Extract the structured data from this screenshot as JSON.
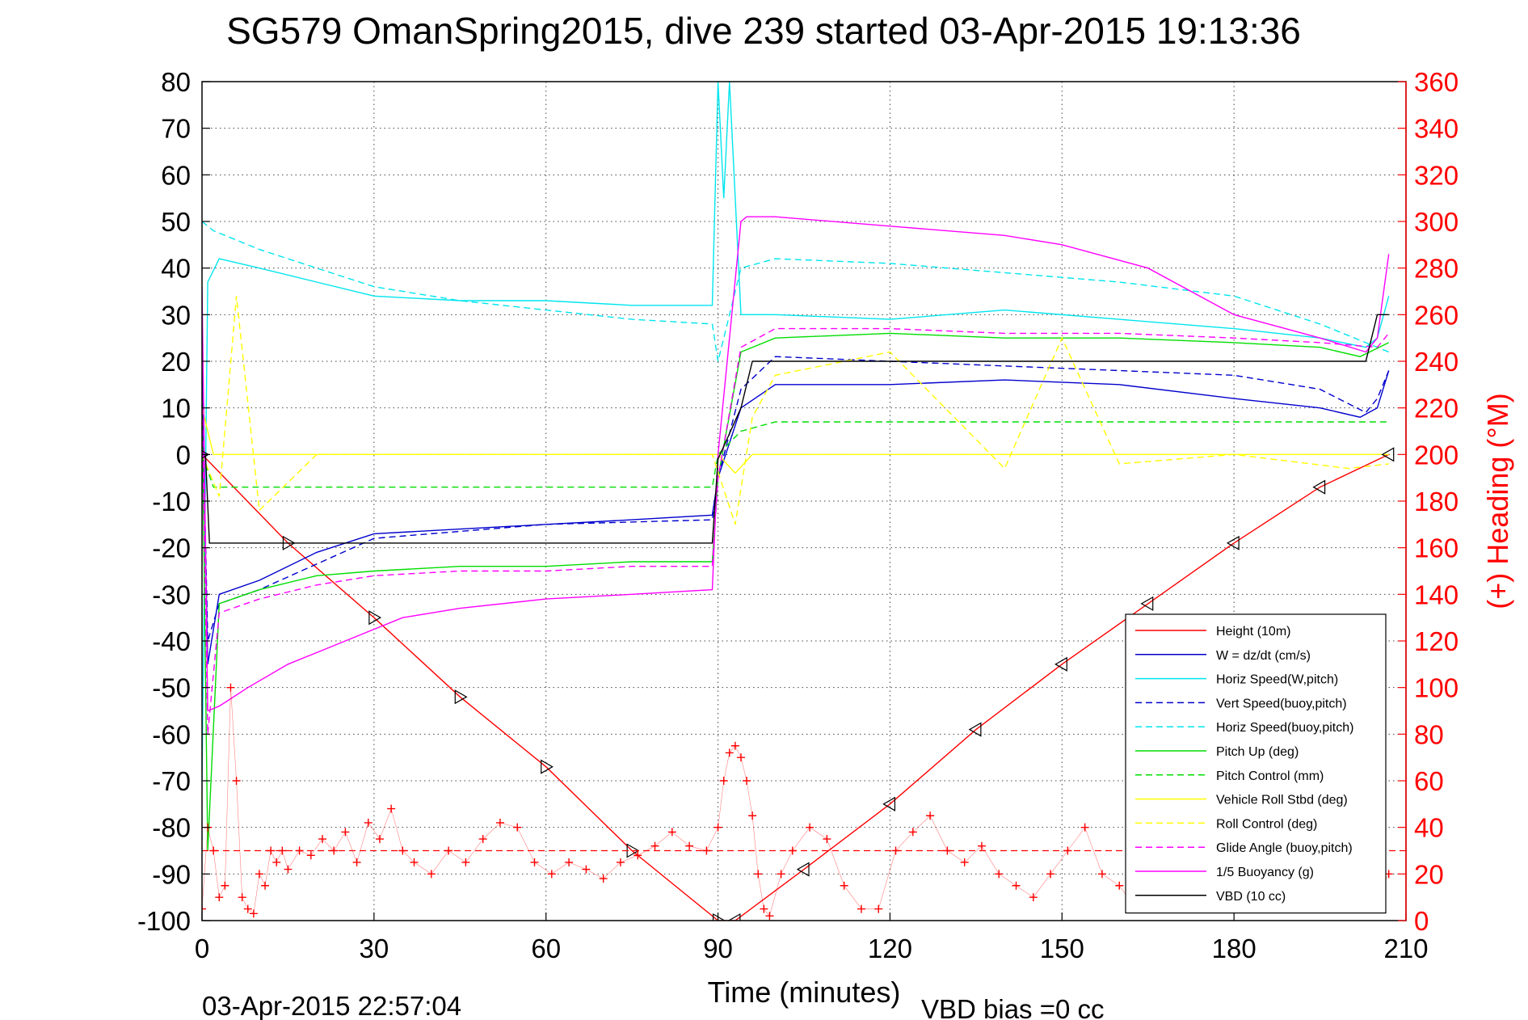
{
  "chart_data": {
    "type": "line",
    "title": "SG579 OmanSpring2015, dive 239 started 03-Apr-2015 19:13:36",
    "xlabel": "Time (minutes)",
    "ylabel": "",
    "y2label": "(+) Heading (°M)",
    "xlim": [
      0,
      210
    ],
    "ylim": [
      -100,
      80
    ],
    "y2lim": [
      0,
      360
    ],
    "xticks": [
      0,
      30,
      60,
      90,
      120,
      150,
      180,
      210
    ],
    "yticks": [
      -100,
      -90,
      -80,
      -70,
      -60,
      -50,
      -40,
      -30,
      -20,
      -10,
      0,
      10,
      20,
      30,
      40,
      50,
      60,
      70,
      80
    ],
    "y2ticks": [
      0,
      20,
      40,
      60,
      80,
      100,
      120,
      140,
      160,
      180,
      200,
      220,
      240,
      260,
      280,
      300,
      320,
      340,
      360
    ],
    "grid": true,
    "legend_position": "lower-right",
    "footer_left": "03-Apr-2015 22:57:04",
    "footer_right": "VBD bias =0 cc",
    "series": [
      {
        "name": "Height (10m)",
        "color": "#ff0000",
        "style": "solid",
        "x": [
          0,
          15,
          30,
          45,
          60,
          75,
          90,
          93,
          105,
          120,
          135,
          150,
          165,
          180,
          195,
          207
        ],
        "y": [
          0,
          -19,
          -35,
          -52,
          -67,
          -85,
          -100,
          -100,
          -89,
          -75,
          -59,
          -45,
          -32,
          -19,
          -7,
          0
        ]
      },
      {
        "name": "W = dz/dt (cm/s)",
        "color": "#0000cd",
        "style": "solid",
        "x": [
          0,
          1,
          3,
          10,
          20,
          30,
          45,
          60,
          75,
          89,
          90,
          94,
          100,
          120,
          140,
          160,
          180,
          195,
          202,
          205,
          207
        ],
        "y": [
          18,
          -45,
          -30,
          -27,
          -21,
          -17,
          -16,
          -15,
          -14,
          -13,
          -5,
          10,
          15,
          15,
          16,
          15,
          12,
          10,
          8,
          10,
          18
        ]
      },
      {
        "name": "Horiz Speed(W,pitch)",
        "color": "#00e5ee",
        "style": "solid",
        "x": [
          0,
          1,
          3,
          10,
          20,
          30,
          45,
          60,
          75,
          89,
          90,
          91,
          92,
          94,
          100,
          120,
          140,
          160,
          180,
          195,
          203,
          205,
          207
        ],
        "y": [
          -70,
          37,
          42,
          40,
          37,
          34,
          33,
          33,
          32,
          32,
          80,
          55,
          80,
          30,
          30,
          29,
          31,
          29,
          27,
          25,
          23,
          25,
          34
        ]
      },
      {
        "name": "Vert Speed(buoy,pitch)",
        "color": "#0000cd",
        "style": "dashed",
        "x": [
          0,
          1,
          3,
          10,
          30,
          60,
          89,
          90,
          94,
          100,
          120,
          140,
          160,
          180,
          195,
          203,
          205,
          207
        ],
        "y": [
          16,
          -40,
          -32,
          -29,
          -18,
          -15,
          -14,
          -5,
          14,
          21,
          20,
          19,
          18,
          17,
          14,
          9,
          12,
          18
        ]
      },
      {
        "name": "Horiz Speed(buoy,pitch)",
        "color": "#00e5ee",
        "style": "dashed",
        "x": [
          0,
          2,
          10,
          20,
          30,
          45,
          60,
          75,
          89,
          90,
          94,
          100,
          120,
          140,
          160,
          180,
          195,
          205,
          207
        ],
        "y": [
          50,
          48,
          44,
          40,
          36,
          33,
          31,
          29,
          28,
          20,
          40,
          42,
          41,
          39,
          37,
          34,
          28,
          23,
          22
        ]
      },
      {
        "name": "Pitch Up (deg)",
        "color": "#00dd00",
        "style": "solid",
        "x": [
          0,
          1,
          3,
          10,
          20,
          30,
          45,
          60,
          75,
          89,
          90,
          94,
          100,
          120,
          140,
          160,
          180,
          195,
          202,
          207
        ],
        "y": [
          12,
          -85,
          -32,
          -29,
          -26,
          -25,
          -24,
          -24,
          -23,
          -23,
          -5,
          22,
          25,
          26,
          25,
          25,
          24,
          23,
          21,
          24
        ]
      },
      {
        "name": "Pitch Control (mm)",
        "color": "#00dd00",
        "style": "dashed",
        "x": [
          0,
          2,
          89,
          90,
          94,
          100,
          205,
          207
        ],
        "y": [
          0,
          -7,
          -7,
          0,
          5,
          7,
          7,
          7
        ]
      },
      {
        "name": "Vehicle Roll Stbd (deg)",
        "color": "#ffff00",
        "style": "solid",
        "x": [
          0,
          2,
          5,
          10,
          20,
          30,
          40,
          50,
          60,
          70,
          80,
          89,
          90,
          93,
          96,
          100,
          110,
          120,
          130,
          140,
          150,
          160,
          170,
          180,
          190,
          200,
          205,
          207
        ],
        "y": [
          10,
          0,
          0,
          0,
          0,
          0,
          0,
          0,
          0,
          0,
          0,
          0,
          0,
          -4,
          0,
          0,
          0,
          0,
          0,
          0,
          0,
          0,
          0,
          0,
          0,
          0,
          0,
          0
        ]
      },
      {
        "name": "Roll Control (deg)",
        "color": "#ffff00",
        "style": "dashed",
        "x": [
          0,
          3,
          6,
          10,
          20,
          40,
          60,
          89,
          93,
          96,
          100,
          120,
          140,
          150,
          160,
          180,
          200,
          207
        ],
        "y": [
          0,
          -9,
          34,
          -12,
          0,
          0,
          0,
          0,
          -15,
          8,
          17,
          22,
          -3,
          25,
          -2,
          0,
          -3,
          -2
        ]
      },
      {
        "name": "Glide Angle (buoy,pitch)",
        "color": "#ff00ff",
        "style": "dashed",
        "x": [
          0,
          1,
          3,
          10,
          20,
          30,
          45,
          60,
          75,
          89,
          90,
          94,
          100,
          120,
          140,
          160,
          180,
          195,
          205,
          207
        ],
        "y": [
          12,
          -60,
          -34,
          -31,
          -28,
          -26,
          -25,
          -25,
          -24,
          -24,
          -5,
          23,
          27,
          27,
          26,
          26,
          25,
          24,
          23,
          26
        ]
      },
      {
        "name": "1/5 Buoyancy (g)",
        "color": "#ff00ff",
        "style": "solid",
        "x": [
          0,
          1,
          3,
          8,
          15,
          25,
          35,
          45,
          60,
          75,
          89,
          90,
          94,
          95,
          100,
          120,
          140,
          150,
          165,
          180,
          195,
          203,
          205,
          207
        ],
        "y": [
          36,
          -55,
          -54,
          -50,
          -45,
          -40,
          -35,
          -33,
          -31,
          -30,
          -29,
          0,
          50,
          51,
          51,
          49,
          47,
          45,
          40,
          30,
          25,
          22,
          25,
          43
        ]
      },
      {
        "name": "VBD (10 cc)",
        "color": "#000000",
        "style": "solid",
        "x": [
          0,
          0.6,
          1.3,
          1.8,
          89,
          90,
          94,
          96,
          100,
          150,
          203,
          205,
          207
        ],
        "y": [
          0,
          0,
          -19,
          -19,
          -19,
          -1,
          10,
          20,
          20,
          20,
          20,
          30,
          30
        ]
      }
    ],
    "heading": {
      "name": "Heading",
      "axis": "right",
      "color": "#ff0000",
      "marker": "+",
      "x": [
        0,
        1,
        2,
        3,
        4,
        5,
        6,
        7,
        8,
        9,
        10,
        11,
        12,
        13,
        14,
        15,
        17,
        19,
        21,
        23,
        25,
        27,
        29,
        31,
        33,
        35,
        37,
        40,
        43,
        46,
        49,
        52,
        55,
        58,
        61,
        64,
        67,
        70,
        73,
        76,
        79,
        82,
        85,
        88,
        90,
        91,
        92,
        93,
        94,
        95,
        96,
        97,
        98,
        99,
        101,
        103,
        106,
        109,
        112,
        115,
        118,
        121,
        124,
        127,
        130,
        133,
        136,
        139,
        142,
        145,
        148,
        151,
        154,
        157,
        160,
        163,
        166,
        169,
        172,
        175,
        178,
        181,
        184,
        187,
        190,
        193,
        196,
        199,
        202,
        205,
        207
      ],
      "y": [
        5,
        40,
        30,
        10,
        15,
        100,
        60,
        10,
        5,
        3,
        20,
        15,
        30,
        25,
        30,
        22,
        30,
        28,
        35,
        30,
        38,
        25,
        42,
        35,
        48,
        30,
        25,
        20,
        30,
        25,
        35,
        42,
        40,
        25,
        20,
        25,
        22,
        18,
        25,
        28,
        32,
        38,
        32,
        30,
        40,
        60,
        72,
        75,
        70,
        60,
        45,
        20,
        5,
        2,
        20,
        30,
        40,
        35,
        15,
        5,
        5,
        30,
        38,
        45,
        30,
        25,
        32,
        20,
        15,
        10,
        20,
        30,
        40,
        20,
        15,
        5,
        10,
        5,
        15,
        10,
        20,
        10,
        5,
        10,
        20,
        15,
        5,
        30,
        5,
        10,
        20
      ]
    },
    "heading_reference_y": 30
  }
}
